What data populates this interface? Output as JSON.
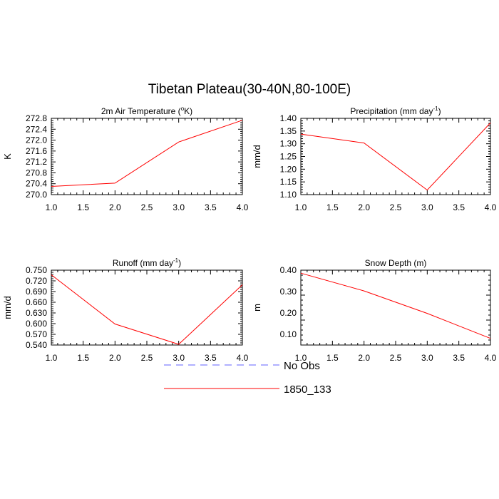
{
  "figure": {
    "title": "Tibetan Plateau(30-40N,80-100E)"
  },
  "legend": {
    "entries": [
      {
        "label": "No Obs",
        "color": "#6060ff",
        "dashed": true
      },
      {
        "label": "1850_133",
        "color": "#ff0000",
        "dashed": false
      }
    ]
  },
  "chart_data": [
    {
      "type": "line",
      "title": "2m Air Temperature (",
      "title_sup": "o",
      "title_tail": "K)",
      "ylabel": "K",
      "xlim": [
        1.0,
        4.0
      ],
      "ylim": [
        270.0,
        272.8
      ],
      "xticks": [
        "1.0",
        "1.5",
        "2.0",
        "2.5",
        "3.0",
        "3.5",
        "4.0"
      ],
      "yticks": [
        "270.0",
        "270.4",
        "270.8",
        "271.2",
        "271.6",
        "272.0",
        "272.4",
        "272.8"
      ],
      "series": [
        {
          "name": "1850_133",
          "color": "#ff0000",
          "x": [
            1.0,
            2.0,
            3.0,
            4.0
          ],
          "y": [
            270.3,
            270.42,
            271.93,
            272.73
          ]
        }
      ]
    },
    {
      "type": "line",
      "title": "Precipitation (mm day",
      "title_sup": "-1",
      "title_tail": ")",
      "ylabel": "mm/d",
      "xlim": [
        1.0,
        4.0
      ],
      "ylim": [
        1.1,
        1.4
      ],
      "xticks": [
        "1.0",
        "1.5",
        "2.0",
        "2.5",
        "3.0",
        "3.5",
        "4.0"
      ],
      "yticks": [
        "1.10",
        "1.15",
        "1.20",
        "1.25",
        "1.30",
        "1.35",
        "1.40"
      ],
      "series": [
        {
          "name": "1850_133",
          "color": "#ff0000",
          "x": [
            1.0,
            2.0,
            3.0,
            4.0
          ],
          "y": [
            1.338,
            1.303,
            1.118,
            1.382
          ]
        }
      ]
    },
    {
      "type": "line",
      "title": "Runoff (mm day",
      "title_sup": "-1",
      "title_tail": ")",
      "ylabel": "mm/d",
      "xlim": [
        1.0,
        4.0
      ],
      "ylim": [
        0.54,
        0.75
      ],
      "xticks": [
        "1.0",
        "1.5",
        "2.0",
        "2.5",
        "3.0",
        "3.5",
        "4.0"
      ],
      "yticks": [
        "0.540",
        "0.570",
        "0.600",
        "0.630",
        "0.660",
        "0.690",
        "0.720",
        "0.750"
      ],
      "series": [
        {
          "name": "1850_133",
          "color": "#ff0000",
          "x": [
            1.0,
            2.0,
            3.0,
            4.0
          ],
          "y": [
            0.737,
            0.599,
            0.542,
            0.709
          ]
        }
      ]
    },
    {
      "type": "line",
      "title": "Snow Depth (m)",
      "title_sup": "",
      "title_tail": "",
      "ylabel": "m",
      "xlim": [
        1.0,
        4.0
      ],
      "ylim": [
        0.05,
        0.4
      ],
      "xticks": [
        "1.0",
        "1.5",
        "2.0",
        "2.5",
        "3.0",
        "3.5",
        "4.0"
      ],
      "yticks": [
        "0.10",
        "0.20",
        "0.30",
        "0.40"
      ],
      "series": [
        {
          "name": "1850_133",
          "color": "#ff0000",
          "x": [
            1.0,
            2.0,
            3.0,
            4.0
          ],
          "y": [
            0.386,
            0.303,
            0.198,
            0.081
          ]
        }
      ]
    }
  ]
}
